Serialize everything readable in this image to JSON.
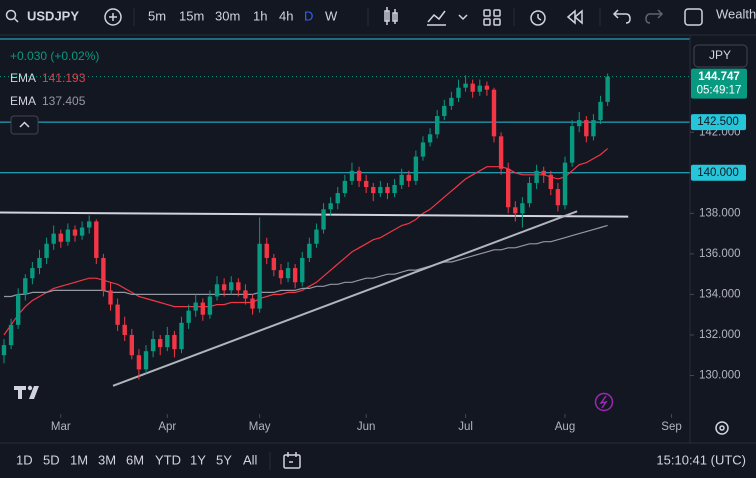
{
  "toolbar": {
    "intervals": [
      "5m",
      "15m",
      "30m",
      "1h",
      "4h",
      "D",
      "W"
    ],
    "active": 5,
    "cut": "Wealth"
  },
  "bottom": {
    "ranges": [
      "1D",
      "5D",
      "1M",
      "3M",
      "6M",
      "YTD",
      "1Y",
      "5Y",
      "All"
    ],
    "clock": "15:10:41 (UTC)"
  },
  "chart_data": {
    "type": "candlestick",
    "symbol": "USDJPY",
    "currency": "JPY",
    "change": "+0.030 (+0.02%)",
    "countdown": "05:49:17",
    "up_color": "#089981",
    "down_color": "#f23645",
    "ohlc": [
      [
        131.0,
        131.8,
        130.6,
        131.5
      ],
      [
        131.5,
        132.8,
        131.3,
        132.5
      ],
      [
        132.5,
        134.3,
        132.3,
        134.0
      ],
      [
        134.0,
        135.0,
        133.7,
        134.8
      ],
      [
        134.8,
        135.6,
        134.5,
        135.3
      ],
      [
        135.3,
        136.2,
        135.0,
        135.8
      ],
      [
        135.8,
        136.8,
        135.5,
        136.5
      ],
      [
        136.5,
        137.4,
        136.2,
        137.0
      ],
      [
        137.0,
        137.2,
        136.3,
        136.6
      ],
      [
        136.6,
        137.5,
        136.4,
        137.2
      ],
      [
        137.2,
        137.4,
        136.6,
        136.9
      ],
      [
        136.9,
        137.6,
        136.7,
        137.3
      ],
      [
        137.3,
        137.9,
        137.0,
        137.6
      ],
      [
        137.6,
        137.7,
        135.5,
        135.8
      ],
      [
        135.8,
        136.0,
        133.9,
        134.2
      ],
      [
        134.2,
        134.6,
        133.2,
        133.5
      ],
      [
        133.5,
        133.8,
        132.2,
        132.5
      ],
      [
        132.5,
        132.9,
        131.7,
        132.0
      ],
      [
        132.0,
        132.3,
        130.8,
        131.0
      ],
      [
        131.0,
        131.3,
        129.8,
        130.3
      ],
      [
        130.3,
        131.5,
        130.1,
        131.2
      ],
      [
        131.2,
        132.2,
        130.9,
        131.8
      ],
      [
        131.8,
        132.0,
        131.0,
        131.4
      ],
      [
        131.4,
        132.4,
        131.2,
        132.0
      ],
      [
        132.0,
        132.2,
        130.9,
        131.3
      ],
      [
        131.3,
        132.9,
        131.1,
        132.6
      ],
      [
        132.6,
        133.5,
        132.3,
        133.2
      ],
      [
        133.2,
        134.0,
        132.9,
        133.6
      ],
      [
        133.6,
        133.8,
        132.7,
        133.0
      ],
      [
        133.0,
        134.2,
        132.8,
        133.9
      ],
      [
        133.9,
        134.9,
        133.7,
        134.5
      ],
      [
        134.5,
        134.8,
        133.9,
        134.2
      ],
      [
        134.2,
        134.9,
        134.0,
        134.6
      ],
      [
        134.6,
        134.8,
        133.9,
        134.2
      ],
      [
        134.2,
        134.5,
        133.5,
        133.8
      ],
      [
        133.8,
        134.0,
        133.0,
        133.3
      ],
      [
        133.3,
        137.8,
        133.1,
        136.5
      ],
      [
        136.5,
        136.8,
        135.5,
        135.8
      ],
      [
        135.8,
        136.0,
        134.9,
        135.2
      ],
      [
        135.2,
        135.5,
        134.5,
        134.8
      ],
      [
        134.8,
        135.6,
        134.6,
        135.3
      ],
      [
        135.3,
        135.5,
        134.3,
        134.6
      ],
      [
        134.6,
        136.1,
        134.4,
        135.8
      ],
      [
        135.8,
        136.8,
        135.6,
        136.5
      ],
      [
        136.5,
        137.5,
        136.3,
        137.2
      ],
      [
        137.2,
        138.5,
        137.0,
        138.2
      ],
      [
        138.2,
        138.8,
        137.9,
        138.5
      ],
      [
        138.5,
        139.3,
        138.2,
        139.0
      ],
      [
        139.0,
        139.9,
        138.8,
        139.6
      ],
      [
        139.6,
        140.5,
        139.4,
        140.1
      ],
      [
        140.1,
        140.3,
        139.3,
        139.6
      ],
      [
        139.6,
        139.9,
        139.0,
        139.3
      ],
      [
        139.3,
        139.5,
        138.6,
        139.0
      ],
      [
        139.0,
        139.6,
        138.8,
        139.3
      ],
      [
        139.3,
        139.5,
        138.7,
        139.0
      ],
      [
        139.0,
        139.7,
        138.8,
        139.4
      ],
      [
        139.4,
        140.2,
        139.2,
        139.9
      ],
      [
        139.9,
        140.1,
        139.3,
        139.6
      ],
      [
        139.6,
        141.1,
        139.4,
        140.8
      ],
      [
        140.8,
        141.8,
        140.6,
        141.5
      ],
      [
        141.5,
        142.2,
        141.3,
        141.9
      ],
      [
        141.9,
        143.1,
        141.7,
        142.8
      ],
      [
        142.8,
        143.6,
        142.6,
        143.3
      ],
      [
        143.3,
        144.0,
        143.1,
        143.7
      ],
      [
        143.7,
        144.6,
        143.5,
        144.2
      ],
      [
        144.2,
        144.8,
        144.0,
        144.4
      ],
      [
        144.4,
        144.6,
        143.7,
        144.0
      ],
      [
        144.0,
        144.6,
        143.8,
        144.3
      ],
      [
        144.3,
        144.5,
        143.8,
        144.1
      ],
      [
        144.1,
        144.2,
        141.5,
        141.8
      ],
      [
        141.8,
        142.0,
        139.9,
        140.2
      ],
      [
        140.2,
        140.5,
        138.0,
        138.3
      ],
      [
        138.3,
        138.6,
        137.6,
        138.0
      ],
      [
        138.0,
        138.8,
        137.3,
        138.5
      ],
      [
        138.5,
        139.8,
        138.3,
        139.5
      ],
      [
        139.5,
        140.4,
        139.2,
        140.1
      ],
      [
        140.1,
        140.3,
        139.5,
        139.9
      ],
      [
        139.9,
        140.1,
        138.9,
        139.2
      ],
      [
        139.2,
        139.5,
        138.1,
        138.4
      ],
      [
        138.4,
        140.8,
        138.2,
        140.5
      ],
      [
        140.5,
        142.6,
        140.3,
        142.3
      ],
      [
        142.3,
        143.0,
        142.0,
        142.6
      ],
      [
        142.6,
        142.8,
        141.5,
        141.8
      ],
      [
        141.8,
        142.9,
        141.6,
        142.6
      ],
      [
        142.6,
        143.8,
        142.4,
        143.5
      ],
      [
        143.5,
        144.9,
        143.3,
        144.747
      ]
    ],
    "series": [
      {
        "name": "EMA",
        "color": "#f23645",
        "values": [
          132.0,
          132.5,
          133.0,
          133.4,
          133.7,
          133.9,
          134.1,
          134.3,
          134.4,
          134.5,
          134.6,
          134.7,
          134.8,
          134.8,
          134.7,
          134.6,
          134.5,
          134.3,
          134.1,
          133.9,
          133.8,
          133.7,
          133.6,
          133.5,
          133.4,
          133.4,
          133.4,
          133.4,
          133.4,
          133.4,
          133.5,
          133.5,
          133.6,
          133.6,
          133.6,
          133.6,
          133.8,
          133.9,
          134.0,
          134.0,
          134.1,
          134.1,
          134.2,
          134.4,
          134.6,
          134.9,
          135.2,
          135.5,
          135.8,
          136.1,
          136.3,
          136.5,
          136.7,
          136.8,
          137.0,
          137.2,
          137.4,
          137.5,
          137.7,
          138.0,
          138.2,
          138.5,
          138.8,
          139.1,
          139.4,
          139.7,
          139.9,
          140.1,
          140.3,
          140.3,
          140.3,
          140.2,
          140.0,
          139.9,
          139.9,
          139.9,
          139.9,
          139.8,
          139.7,
          139.8,
          140.1,
          140.4,
          140.5,
          140.7,
          140.9,
          141.193
        ]
      },
      {
        "name": "EMA",
        "color": "#9598a1",
        "values": [
          133.9,
          133.9,
          134.0,
          134.0,
          134.1,
          134.1,
          134.1,
          134.2,
          134.2,
          134.2,
          134.2,
          134.2,
          134.2,
          134.2,
          134.2,
          134.1,
          134.1,
          134.1,
          134.0,
          134.0,
          134.0,
          134.0,
          134.0,
          134.0,
          134.0,
          134.0,
          134.0,
          134.0,
          134.0,
          134.0,
          134.0,
          134.0,
          134.0,
          134.0,
          134.0,
          134.0,
          134.1,
          134.1,
          134.1,
          134.2,
          134.2,
          134.2,
          134.3,
          134.3,
          134.4,
          134.4,
          134.5,
          134.5,
          134.6,
          134.6,
          134.7,
          134.8,
          134.8,
          134.9,
          135.0,
          135.0,
          135.1,
          135.2,
          135.2,
          135.3,
          135.4,
          135.5,
          135.6,
          135.6,
          135.7,
          135.8,
          135.9,
          136.0,
          136.1,
          136.2,
          136.2,
          136.3,
          136.3,
          136.4,
          136.5,
          136.5,
          136.6,
          136.6,
          136.7,
          136.8,
          136.9,
          137.0,
          137.1,
          137.2,
          137.3,
          137.405
        ]
      }
    ],
    "ylim": [
      128.2,
      146.7
    ],
    "yticks": [
      {
        "value": 130,
        "label": "130.000"
      },
      {
        "value": 132,
        "label": "132.000"
      },
      {
        "value": 134,
        "label": "134.000"
      },
      {
        "value": 136,
        "label": "136.000"
      },
      {
        "value": 138,
        "label": "138.000"
      },
      {
        "value": 140,
        "label": "140.000"
      },
      {
        "value": 142,
        "label": "142.000"
      }
    ],
    "xlim": [
      -0.56,
      96.6
    ],
    "xticks": [
      {
        "value": 8,
        "label": "Mar"
      },
      {
        "value": 23,
        "label": "Apr"
      },
      {
        "value": 36,
        "label": "May"
      },
      {
        "value": 51,
        "label": "Jun"
      },
      {
        "value": 65,
        "label": "Jul"
      },
      {
        "value": 79,
        "label": "Aug"
      },
      {
        "value": 94,
        "label": "Sep"
      }
    ],
    "hlines": [
      146.6,
      {
        "value": 142.5,
        "label": "142.500"
      },
      {
        "value": 140,
        "label": "140.000"
      }
    ],
    "hline_color": "#26c6da",
    "trendlines": [
      {
        "color": "#d1d4dc",
        "points": [
          [
            -0.56,
            138.04
          ],
          [
            87.9,
            137.84
          ]
        ]
      },
      {
        "color": "#b2b5be",
        "points": [
          [
            15.35,
            129.49
          ],
          [
            80.7,
            138.1
          ]
        ]
      }
    ]
  }
}
